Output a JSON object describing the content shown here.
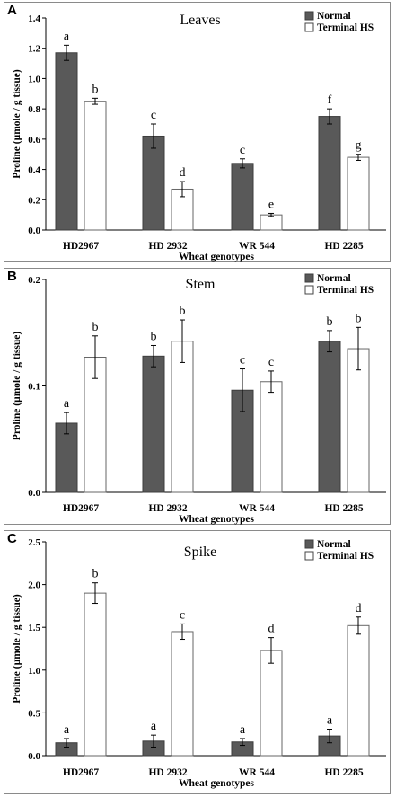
{
  "chart_data": [
    {
      "type": "bar",
      "panel_label": "A",
      "title": "Leaves",
      "ylabel": "Proline (µmole / g tissue)",
      "xlabel": "Wheat genotypes",
      "categories": [
        "HD2967",
        "HD 2932",
        "WR 544",
        "HD 2285"
      ],
      "ylim": [
        0,
        1.4
      ],
      "yticks": [
        "0.0",
        "0.2",
        "0.4",
        "0.6",
        "0.8",
        "1.0",
        "1.2",
        "1.4"
      ],
      "legend_position": "top-right",
      "series": [
        {
          "name": "Normal",
          "color": "#595959",
          "values": [
            1.17,
            0.62,
            0.44,
            0.75
          ],
          "errors": [
            0.05,
            0.08,
            0.03,
            0.05
          ],
          "labels": [
            "a",
            "c",
            "c",
            "f"
          ]
        },
        {
          "name": "Terminal HS",
          "color": "#ffffff",
          "values": [
            0.85,
            0.27,
            0.1,
            0.48
          ],
          "errors": [
            0.02,
            0.05,
            0.01,
            0.02
          ],
          "labels": [
            "b",
            "d",
            "e",
            "g"
          ]
        }
      ]
    },
    {
      "type": "bar",
      "panel_label": "B",
      "title": "Stem",
      "ylabel": "Proline (µmole / g tissue)",
      "xlabel": "Wheat genotypes",
      "categories": [
        "HD2967",
        "HD 2932",
        "WR 544",
        "HD 2285"
      ],
      "ylim": [
        0,
        0.2
      ],
      "yticks": [
        "0.0",
        "0.1",
        "0.2"
      ],
      "legend_position": "top-right",
      "series": [
        {
          "name": "Normal",
          "color": "#595959",
          "values": [
            0.065,
            0.128,
            0.096,
            0.142
          ],
          "errors": [
            0.01,
            0.01,
            0.02,
            0.01
          ],
          "labels": [
            "a",
            "b",
            "c",
            "b"
          ]
        },
        {
          "name": "Terminal HS",
          "color": "#ffffff",
          "values": [
            0.127,
            0.142,
            0.104,
            0.135
          ],
          "errors": [
            0.02,
            0.02,
            0.01,
            0.02
          ],
          "labels": [
            "b",
            "b",
            "c",
            "b"
          ]
        }
      ]
    },
    {
      "type": "bar",
      "panel_label": "C",
      "title": "Spike",
      "ylabel": "Proline (µmole / g tissue)",
      "xlabel": "Wheat genotypes",
      "categories": [
        "HD2967",
        "HD 2932",
        "WR 544",
        "HD 2285"
      ],
      "ylim": [
        0,
        2.5
      ],
      "yticks": [
        "0.0",
        "0.5",
        "1.0",
        "1.5",
        "2.0",
        "2.5"
      ],
      "legend_position": "top-right",
      "series": [
        {
          "name": "Normal",
          "color": "#595959",
          "values": [
            0.15,
            0.17,
            0.16,
            0.23
          ],
          "errors": [
            0.05,
            0.07,
            0.04,
            0.08
          ],
          "labels": [
            "a",
            "a",
            "a",
            "a"
          ]
        },
        {
          "name": "Terminal HS",
          "color": "#ffffff",
          "values": [
            1.9,
            1.45,
            1.23,
            1.52
          ],
          "errors": [
            0.12,
            0.09,
            0.15,
            0.1
          ],
          "labels": [
            "b",
            "c",
            "d",
            "d"
          ]
        }
      ]
    }
  ]
}
